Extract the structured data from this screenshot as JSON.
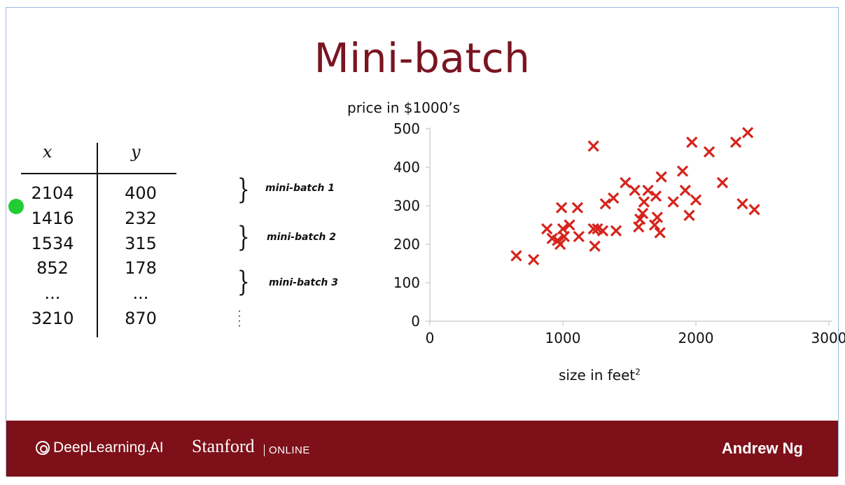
{
  "slide": {
    "title": "Mini-batch"
  },
  "table": {
    "headers": [
      "x",
      "y"
    ],
    "rows": [
      [
        "2104",
        "400"
      ],
      [
        "1416",
        "232"
      ],
      [
        "1534",
        "315"
      ],
      [
        "852",
        "178"
      ],
      [
        "...",
        "..."
      ],
      [
        "3210",
        "870"
      ]
    ]
  },
  "minibatches": [
    "mini-batch 1",
    "mini-batch 2",
    "mini-batch 3"
  ],
  "chart_data": {
    "type": "scatter",
    "ylabel": "price in $1000’s",
    "xlabel": "size in feet",
    "xlabel_sup": "2",
    "xlim": [
      0,
      3000
    ],
    "ylim": [
      0,
      500
    ],
    "xticks": [
      "0",
      "1000",
      "2000",
      "3000"
    ],
    "yticks": [
      "0",
      "100",
      "200",
      "300",
      "400",
      "500"
    ],
    "marker": "x",
    "color": "#d6231c",
    "points": [
      [
        650,
        170
      ],
      [
        780,
        160
      ],
      [
        880,
        240
      ],
      [
        920,
        215
      ],
      [
        960,
        210
      ],
      [
        980,
        200
      ],
      [
        990,
        295
      ],
      [
        1000,
        240
      ],
      [
        1010,
        220
      ],
      [
        1050,
        250
      ],
      [
        1110,
        295
      ],
      [
        1120,
        220
      ],
      [
        1230,
        455
      ],
      [
        1230,
        240
      ],
      [
        1240,
        195
      ],
      [
        1260,
        240
      ],
      [
        1300,
        235
      ],
      [
        1320,
        305
      ],
      [
        1380,
        320
      ],
      [
        1400,
        235
      ],
      [
        1470,
        360
      ],
      [
        1540,
        340
      ],
      [
        1570,
        245
      ],
      [
        1580,
        265
      ],
      [
        1600,
        280
      ],
      [
        1610,
        310
      ],
      [
        1640,
        340
      ],
      [
        1690,
        250
      ],
      [
        1700,
        325
      ],
      [
        1710,
        270
      ],
      [
        1730,
        230
      ],
      [
        1740,
        375
      ],
      [
        1830,
        310
      ],
      [
        1900,
        390
      ],
      [
        1920,
        340
      ],
      [
        1950,
        275
      ],
      [
        1970,
        465
      ],
      [
        2000,
        315
      ],
      [
        2100,
        440
      ],
      [
        2200,
        360
      ],
      [
        2300,
        465
      ],
      [
        2350,
        305
      ],
      [
        2390,
        490
      ],
      [
        2440,
        290
      ]
    ]
  },
  "footer": {
    "logo_text": "DeepLearning.AI",
    "stanford": "Stanford",
    "online": "ONLINE",
    "author": "Andrew Ng"
  }
}
